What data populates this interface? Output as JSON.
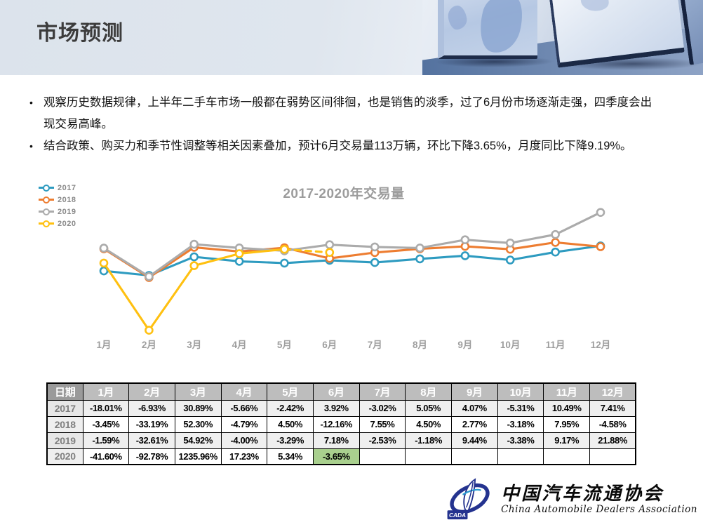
{
  "slide": {
    "title": "市场预测",
    "bullets": [
      "观察历史数据规律，上半年二手车市场一般都在弱势区间徘徊，也是销售的淡季，过了6月份市场逐渐走强，四季度会出现交易高峰。",
      "结合政策、购买力和季节性调整等相关因素叠加，预计6月交易量113万辆，环比下降3.65%，月度同比下降9.19%。"
    ]
  },
  "chart_data": {
    "type": "line",
    "title": "2017-2020年交易量",
    "categories": [
      "1月",
      "2月",
      "3月",
      "4月",
      "5月",
      "6月",
      "7月",
      "8月",
      "9月",
      "10月",
      "11月",
      "12月"
    ],
    "y_axis_shown": false,
    "grid": false,
    "legend_position": "top-left",
    "note": "No y-axis labels shown; series values estimated from point positions (monthly used-car transaction volume, 万辆). June 2020 is a forecast drawn with a dashed segment.",
    "ylim": [
      0,
      175
    ],
    "series": [
      {
        "name": "2017",
        "color": "#2e9bc0",
        "values": [
          87.8,
          81.7,
          107.0,
          100.9,
          98.5,
          102.3,
          99.2,
          104.2,
          108.5,
          102.7,
          113.5,
          121.9
        ]
      },
      {
        "name": "2018",
        "color": "#ed7d31",
        "values": [
          117.9,
          78.8,
          120.0,
          114.2,
          119.4,
          104.9,
          112.8,
          117.9,
          121.2,
          117.3,
          126.6,
          120.8
        ]
      },
      {
        "name": "2019",
        "color": "#ababab",
        "values": [
          118.8,
          80.1,
          124.1,
          119.1,
          115.2,
          123.5,
          120.4,
          119.0,
          130.2,
          125.8,
          137.3,
          167.4
        ]
      },
      {
        "name": "2020",
        "color": "#ffc010",
        "values": [
          98.5,
          7.1,
          94.9,
          111.3,
          117.3,
          113.0
        ],
        "dashed_from_index": 4
      }
    ]
  },
  "table": {
    "header": [
      "日期",
      "1月",
      "2月",
      "3月",
      "4月",
      "5月",
      "6月",
      "7月",
      "8月",
      "9月",
      "10月",
      "11月",
      "12月"
    ],
    "rows": [
      {
        "label": "2017",
        "values": [
          "-18.01%",
          "-6.93%",
          "30.89%",
          "-5.66%",
          "-2.42%",
          "3.92%",
          "-3.02%",
          "5.05%",
          "4.07%",
          "-5.31%",
          "10.49%",
          "7.41%"
        ]
      },
      {
        "label": "2018",
        "values": [
          "-3.45%",
          "-33.19%",
          "52.30%",
          "-4.79%",
          "4.50%",
          "-12.16%",
          "7.55%",
          "4.50%",
          "2.77%",
          "-3.18%",
          "7.95%",
          "-4.58%"
        ]
      },
      {
        "label": "2019",
        "values": [
          "-1.59%",
          "-32.61%",
          "54.92%",
          "-4.00%",
          "-3.29%",
          "7.18%",
          "-2.53%",
          "-1.18%",
          "9.44%",
          "-3.38%",
          "9.17%",
          "21.88%"
        ]
      },
      {
        "label": "2020",
        "values": [
          "-41.60%",
          "-92.78%",
          "1235.96%",
          "17.23%",
          "5.34%",
          "-3.65%",
          "",
          "",
          "",
          "",
          "",
          ""
        ]
      }
    ],
    "highlight": {
      "row": 3,
      "col": 5,
      "color": "#a9d08e"
    }
  },
  "logo": {
    "acronym": "CADA",
    "name_cn": "中国汽车流通协会",
    "name_en": "China Automobile Dealers Association"
  },
  "colors": {
    "header_band": "#dce3ec",
    "title_text": "#3c3c3c",
    "chart_title_text": "#9c9c9c",
    "table_header_bg": "#bdbdbd",
    "table_date_header_bg": "#9a9a9a",
    "table_band_bg": "#efefef",
    "highlight_green": "#a9d08e",
    "corner_marker_blue": "#4472c4"
  }
}
